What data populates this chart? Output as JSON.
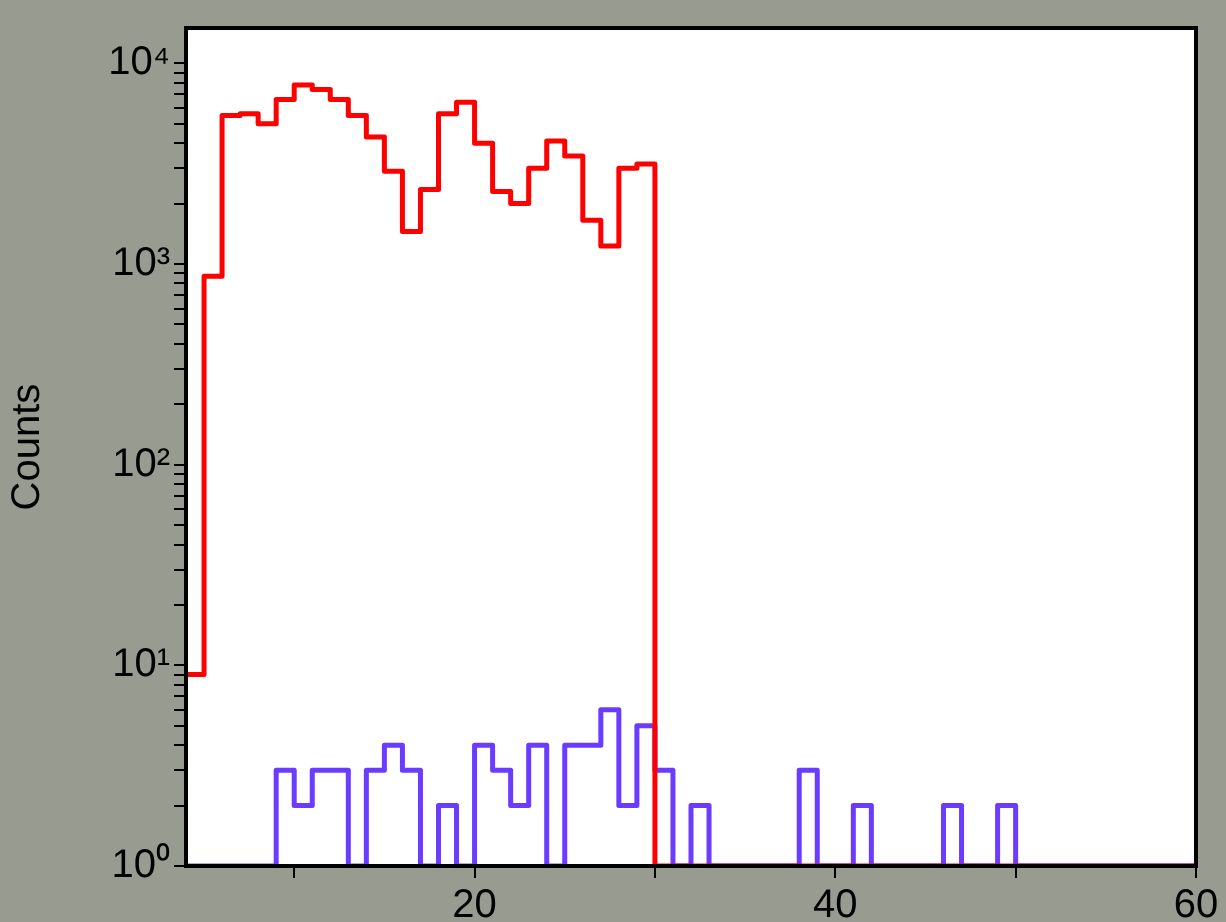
{
  "chart_data": {
    "type": "histogram",
    "ylabel": "Counts",
    "log": true,
    "bins": [
      4,
      5,
      6,
      7,
      8,
      9,
      10,
      11,
      12,
      13,
      14,
      15,
      16,
      17,
      18,
      19,
      20,
      21,
      22,
      23,
      24,
      25,
      26,
      27,
      28,
      29,
      30,
      31,
      32,
      33,
      34,
      35,
      36,
      37,
      38,
      39,
      40,
      41,
      42,
      43,
      44,
      45,
      46,
      47,
      48,
      49,
      50,
      51,
      52,
      53,
      54,
      55,
      56,
      57,
      58,
      59,
      60
    ],
    "series": [
      {
        "color": "#ff0000",
        "values": [
          9,
          870,
          5500,
          5600,
          5000,
          6600,
          7800,
          7400,
          6600,
          5500,
          4300,
          2900,
          1450,
          2350,
          5600,
          6400,
          4000,
          2300,
          2000,
          3000,
          4100,
          3450,
          1650,
          1230,
          3000,
          3150,
          null,
          null,
          null,
          null,
          null,
          null,
          null,
          null,
          null,
          null,
          null,
          null,
          null,
          null,
          null,
          null,
          null,
          null,
          null,
          null,
          null,
          null,
          null,
          null,
          null,
          null,
          null,
          null,
          null,
          null
        ]
      },
      {
        "color": "#6a3cff",
        "values": [
          null,
          null,
          null,
          null,
          null,
          3,
          2,
          3,
          3,
          1,
          3,
          4,
          3,
          1,
          2,
          1,
          4,
          3,
          2,
          4,
          1,
          4,
          4,
          6,
          2,
          5,
          3,
          1,
          2,
          1,
          1,
          1,
          1,
          1,
          3,
          1,
          1,
          2,
          1,
          1,
          1,
          1,
          2,
          null,
          1,
          2,
          null,
          1,
          1,
          null,
          null,
          null,
          1,
          null,
          null,
          null
        ]
      }
    ],
    "xlim": [
      4,
      60
    ],
    "ylim": [
      1,
      15000
    ],
    "xticks": [
      {
        "value": 10,
        "label": null
      },
      20,
      {
        "value": 30,
        "label": null
      },
      40,
      {
        "value": 50,
        "label": null
      },
      60
    ],
    "yticks": [
      {
        "value": 1,
        "label": "10⁰"
      },
      {
        "value": 2,
        "label": null
      },
      {
        "value": 3,
        "label": null
      },
      {
        "value": 4,
        "label": null
      },
      {
        "value": 5,
        "label": null
      },
      {
        "value": 6,
        "label": null
      },
      {
        "value": 7,
        "label": null
      },
      {
        "value": 8,
        "label": null
      },
      {
        "value": 9,
        "label": null
      },
      {
        "value": 10,
        "label": "10¹"
      },
      {
        "value": 20,
        "label": null
      },
      {
        "value": 30,
        "label": null
      },
      {
        "value": 40,
        "label": null
      },
      {
        "value": 50,
        "label": null
      },
      {
        "value": 60,
        "label": null
      },
      {
        "value": 70,
        "label": null
      },
      {
        "value": 80,
        "label": null
      },
      {
        "value": 90,
        "label": null
      },
      {
        "value": 100,
        "label": "10²"
      },
      {
        "value": 200,
        "label": null
      },
      {
        "value": 300,
        "label": null
      },
      {
        "value": 400,
        "label": null
      },
      {
        "value": 500,
        "label": null
      },
      {
        "value": 600,
        "label": null
      },
      {
        "value": 700,
        "label": null
      },
      {
        "value": 800,
        "label": null
      },
      {
        "value": 900,
        "label": null
      },
      {
        "value": 1000,
        "label": "10³"
      },
      {
        "value": 2000,
        "label": null
      },
      {
        "value": 3000,
        "label": null
      },
      {
        "value": 4000,
        "label": null
      },
      {
        "value": 5000,
        "label": null
      },
      {
        "value": 6000,
        "label": null
      },
      {
        "value": 7000,
        "label": null
      },
      {
        "value": 8000,
        "label": null
      },
      {
        "value": 9000,
        "label": null
      },
      {
        "value": 10000,
        "label": "10⁴"
      }
    ]
  }
}
